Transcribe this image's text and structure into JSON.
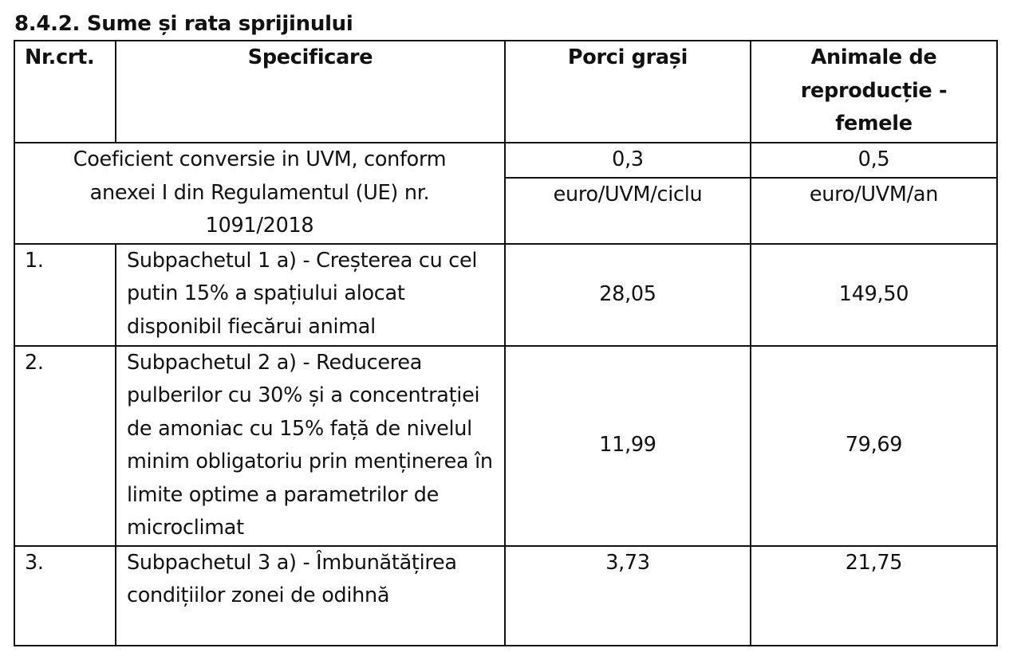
{
  "section": {
    "title": "8.4.2. Sume și rata sprijinului"
  },
  "table": {
    "headers": {
      "nr": "Nr.crt.",
      "spec": "Specificare",
      "porci": "Porci grași",
      "animale": "Animale de reproducție - femele"
    },
    "coefficient": {
      "label": "Coeficient conversie in UVM, conform anexei I din Regulamentul (UE) nr. 1091/2018",
      "porci": "0,3",
      "animale": "0,5"
    },
    "units": {
      "porci": "euro/UVM/ciclu",
      "animale": "euro/UVM/an"
    },
    "rows": [
      {
        "nr": "1.",
        "spec": "Subpachetul 1 a) - Creșterea cu cel putin 15% a spațiului alocat disponibil fiecărui animal",
        "porci": "28,05",
        "animale": "149,50"
      },
      {
        "nr": "2.",
        "spec": "Subpachetul 2 a) - Reducerea pulberilor cu 30% și a concentrației de amoniac cu 15% față de nivelul minim obligatoriu prin menținerea în limite optime a parametrilor de microclimat",
        "porci": "11,99",
        "animale": "79,69"
      },
      {
        "nr": "3.",
        "spec": "Subpachetul 3 a) - Îmbunătățirea condițiilor zonei de odihnă",
        "porci": "3,73",
        "animale": "21,75"
      }
    ]
  }
}
